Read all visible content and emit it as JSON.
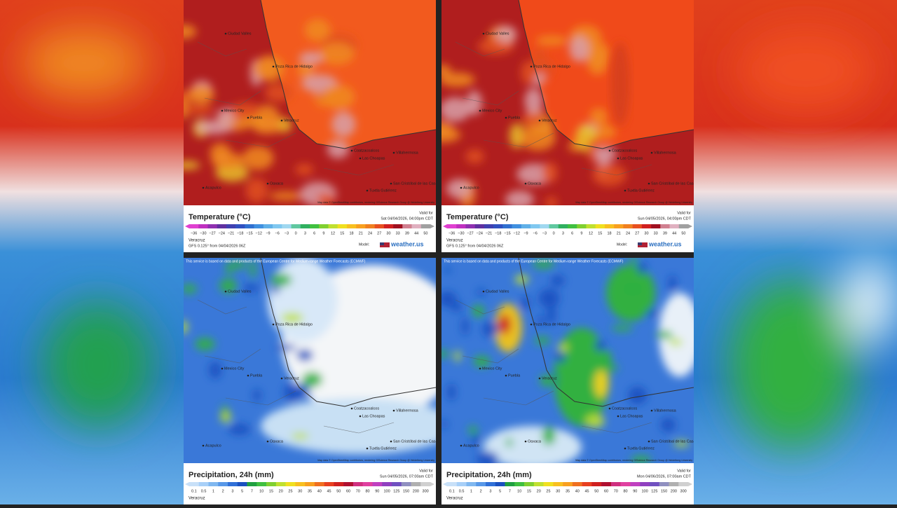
{
  "attribution": "Map data © OpenStreetMap contributors, rendering GIScience Research Group @ Heidelberg University",
  "ecmwf_notice": "This service is based on data and products of the European Centre for Medium-range Weather Forecasts (ECMWF)",
  "cities": [
    "Ciudad Valles",
    "Poza Rica de Hidalgo",
    "Mexico City",
    "Puebla",
    "Veracruz",
    "Oaxaca",
    "Acapulco",
    "Coatzacoalcos",
    "Las Choapas",
    "Villahermosa",
    "Tuxtla Gutiérrez",
    "San Cristóbal de las Casas"
  ],
  "panels": [
    {
      "title": "Temperature (°C)",
      "valid_label": "Valid for",
      "valid_time": "Sat 04/04/2026, 04:00pm CDT",
      "scale": [
        "−36",
        "−30",
        "−27",
        "−24",
        "−21",
        "−18",
        "−15",
        "−12",
        "−9",
        "−6",
        "−3",
        "0",
        "3",
        "6",
        "9",
        "12",
        "15",
        "18",
        "21",
        "24",
        "27",
        "30",
        "33",
        "39",
        "44",
        "50"
      ],
      "location": "Veracruz",
      "model_info": "GFS 0.125° from 04/04/2026 06Z",
      "model_label": "Model:",
      "brand": "weather.us"
    },
    {
      "title": "Temperature (°C)",
      "valid_label": "Valid for",
      "valid_time": "Sun 04/05/2026, 04:00pm CDT",
      "scale": [
        "−36",
        "−30",
        "−27",
        "−24",
        "−21",
        "−18",
        "−15",
        "−12",
        "−9",
        "−6",
        "−3",
        "0",
        "3",
        "6",
        "9",
        "12",
        "15",
        "18",
        "21",
        "24",
        "27",
        "30",
        "33",
        "39",
        "44",
        "50"
      ],
      "location": "Veracruz",
      "model_info": "GFS 0.125° from 04/04/2026 06Z",
      "model_label": "Model:",
      "brand": "weather.us"
    },
    {
      "title": "Precipitation, 24h (mm)",
      "valid_label": "Valid for",
      "valid_time": "Sun 04/05/2026, 07:00am CDT",
      "scale": [
        "0.1",
        "0.5",
        "1",
        "2",
        "3",
        "5",
        "7",
        "10",
        "15",
        "20",
        "25",
        "30",
        "35",
        "40",
        "45",
        "50",
        "60",
        "70",
        "80",
        "90",
        "100",
        "125",
        "150",
        "200",
        "300"
      ],
      "location": "Veracruz"
    },
    {
      "title": "Precipitation, 24h (mm)",
      "valid_label": "Valid for",
      "valid_time": "Mon 04/06/2026, 07:00am CDT",
      "scale": [
        "0.1",
        "0.5",
        "1",
        "2",
        "3",
        "5",
        "7",
        "10",
        "15",
        "20",
        "25",
        "30",
        "35",
        "40",
        "45",
        "50",
        "60",
        "70",
        "80",
        "90",
        "100",
        "125",
        "150",
        "200",
        "300"
      ],
      "location": "Veracruz"
    }
  ]
}
